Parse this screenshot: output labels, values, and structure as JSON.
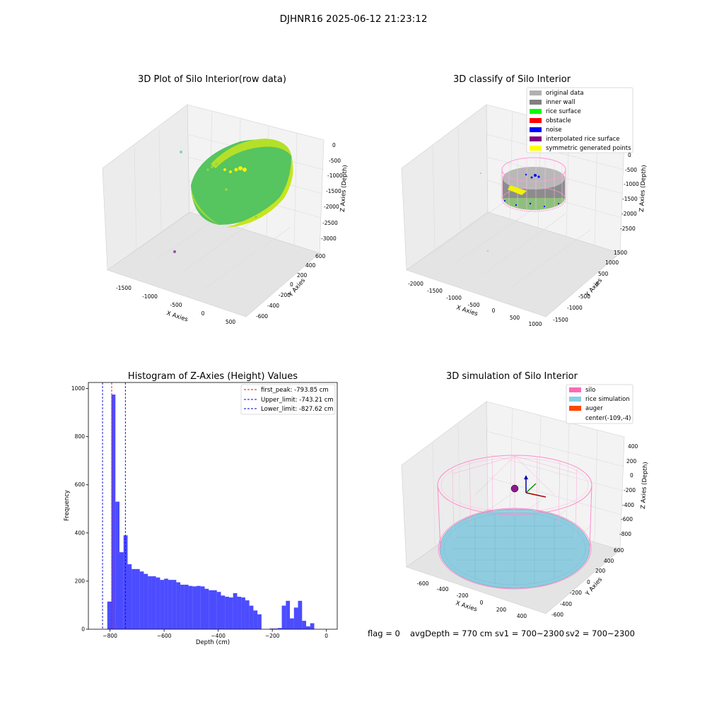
{
  "suptitle": "DJHNR16 2025-06-12 21:23:12",
  "panels": {
    "raw": {
      "title": "3D Plot of Silo Interior(row data)",
      "xlabel": "X Axies",
      "ylabel": "Y Axies",
      "zlabel": "Z Axies (Depth)",
      "xticks": [
        "-1500",
        "-1000",
        "-500",
        "0",
        "500"
      ],
      "yticks": [
        "-600",
        "-400",
        "-200",
        "0",
        "200",
        "400",
        "600"
      ],
      "zticks": [
        "0",
        "-500",
        "-1000",
        "-1500",
        "-2000",
        "-2500",
        "-3000"
      ]
    },
    "classify": {
      "title": "3D classify of Silo Interior",
      "xlabel": "X Axies",
      "ylabel": "Y Axies",
      "zlabel": "Z Axies (Depth)",
      "xticks": [
        "-2000",
        "-1500",
        "-1000",
        "-500",
        "0",
        "500",
        "1000"
      ],
      "yticks": [
        "-1500",
        "-1000",
        "-500",
        "0",
        "500",
        "1000",
        "1500"
      ],
      "zticks": [
        "0",
        "-500",
        "-1000",
        "-1500",
        "-2000",
        "-2500"
      ],
      "legend": [
        {
          "label": "original data",
          "color": "#b0b0b0"
        },
        {
          "label": "inner wall",
          "color": "#808080"
        },
        {
          "label": "rice surface",
          "color": "#00ff00"
        },
        {
          "label": "obstacle",
          "color": "#ff0000"
        },
        {
          "label": "noise",
          "color": "#0000ff"
        },
        {
          "label": "interpolated rice surface",
          "color": "#800080"
        },
        {
          "label": "symmetric generated points",
          "color": "#ffff00"
        }
      ]
    },
    "simulation": {
      "title": "3D simulation of Silo Interior",
      "xlabel": "X Axies",
      "ylabel": "Y Axies",
      "zlabel": "Z Axies (Depth)",
      "xticks": [
        "-600",
        "-400",
        "-200",
        "0",
        "200",
        "400"
      ],
      "yticks": [
        "-600",
        "-400",
        "-200",
        "0",
        "200",
        "400",
        "600"
      ],
      "zticks": [
        "400",
        "200",
        "0",
        "-200",
        "-400",
        "-600",
        "-800"
      ],
      "legend": [
        {
          "label": "silo",
          "color": "#ff69b4"
        },
        {
          "label": "rice simulation",
          "color": "#87ceeb"
        },
        {
          "label": "auger",
          "color": "#ff4500"
        },
        {
          "label": "center(-109,-4)",
          "color": ""
        }
      ]
    }
  },
  "chart_data": {
    "type": "bar",
    "title": "Histogram of Z-Axies (Height) Values",
    "xlabel": "Depth (cm)",
    "ylabel": "Frequency",
    "xlim": [
      -880,
      40
    ],
    "ylim": [
      0,
      1025
    ],
    "bar_color": "#0000ff",
    "xticks": [
      -800,
      -600,
      -400,
      -200,
      0
    ],
    "yticks": [
      0,
      200,
      400,
      600,
      800,
      1000
    ],
    "bin_start": -810,
    "bin_width": 15,
    "values": [
      115,
      975,
      530,
      320,
      390,
      270,
      250,
      250,
      240,
      230,
      220,
      220,
      215,
      205,
      210,
      205,
      205,
      195,
      185,
      185,
      180,
      178,
      180,
      178,
      168,
      162,
      162,
      155,
      140,
      135,
      132,
      150,
      135,
      132,
      120,
      98,
      78,
      62,
      0,
      0,
      3,
      3,
      5,
      98,
      118,
      45,
      90,
      118,
      35,
      12,
      25
    ],
    "vlines": [
      {
        "x": -793.85,
        "label": "first_peak: -793.85 cm",
        "color": "#ff0000"
      },
      {
        "x": -743.21,
        "label": "Upper_limit: -743.21 cm",
        "color": "#0000ff"
      },
      {
        "x": -827.62,
        "label": "Lower_limit: -827.62 cm",
        "color": "#0000cc"
      }
    ],
    "legend_position": "upper-right"
  },
  "status": {
    "flag": "flag = 0",
    "avg_depth": "avgDepth = 770 cm",
    "sv1": "sv1 = 700~2300",
    "sv2": "sv2 = 700~2300"
  }
}
